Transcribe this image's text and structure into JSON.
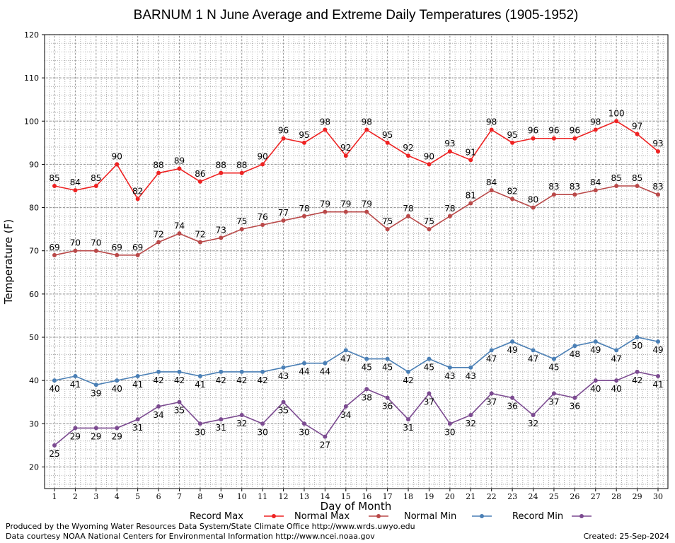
{
  "chart_data": {
    "type": "line",
    "title": "BARNUM 1 N June Average and Extreme Daily Temperatures (1905-1952)",
    "xlabel": "Day of Month",
    "ylabel": "Temperature (F)",
    "xlim": [
      1,
      30
    ],
    "ylim": [
      15,
      120
    ],
    "y_ticks": [
      20,
      30,
      40,
      50,
      60,
      70,
      80,
      90,
      100,
      110,
      120
    ],
    "x": [
      1,
      2,
      3,
      4,
      5,
      6,
      7,
      8,
      9,
      10,
      11,
      12,
      13,
      14,
      15,
      16,
      17,
      18,
      19,
      20,
      21,
      22,
      23,
      24,
      25,
      26,
      27,
      28,
      29,
      30
    ],
    "grid": true,
    "legend_position": "bottom",
    "series": [
      {
        "name": "Record Max",
        "color": "#ee2222",
        "label_position": "above",
        "values": [
          85,
          84,
          85,
          90,
          82,
          88,
          89,
          86,
          88,
          88,
          90,
          96,
          95,
          98,
          92,
          98,
          95,
          92,
          90,
          93,
          91,
          98,
          95,
          96,
          96,
          96,
          98,
          100,
          97,
          93
        ]
      },
      {
        "name": "Normal Max",
        "color": "#b94848",
        "label_position": "above",
        "values": [
          69,
          70,
          70,
          69,
          69,
          72,
          74,
          72,
          73,
          75,
          76,
          77,
          78,
          79,
          79,
          79,
          75,
          78,
          75,
          78,
          81,
          84,
          82,
          80,
          83,
          83,
          84,
          85,
          85,
          83
        ]
      },
      {
        "name": "Normal Min",
        "color": "#4a7fb5",
        "label_position": "below",
        "values": [
          40,
          41,
          39,
          40,
          41,
          42,
          42,
          41,
          42,
          42,
          42,
          43,
          44,
          44,
          47,
          45,
          45,
          42,
          45,
          43,
          43,
          47,
          49,
          47,
          45,
          48,
          49,
          47,
          50,
          49
        ]
      },
      {
        "name": "Record Min",
        "color": "#7b4a90",
        "label_position": "below",
        "values": [
          25,
          29,
          29,
          29,
          31,
          34,
          35,
          30,
          31,
          32,
          30,
          35,
          30,
          27,
          34,
          38,
          36,
          31,
          37,
          30,
          32,
          37,
          36,
          32,
          37,
          36,
          40,
          40,
          42,
          41
        ]
      }
    ]
  },
  "footer": {
    "credit_line1": "Produced by the Wyoming Water Resources Data System/State Climate Office http://www.wrds.uwyo.edu",
    "credit_line2": "Data courtesy NOAA National Centers for Environmental Information http://www.ncei.noaa.gov",
    "created": "Created:  25-Sep-2024"
  }
}
